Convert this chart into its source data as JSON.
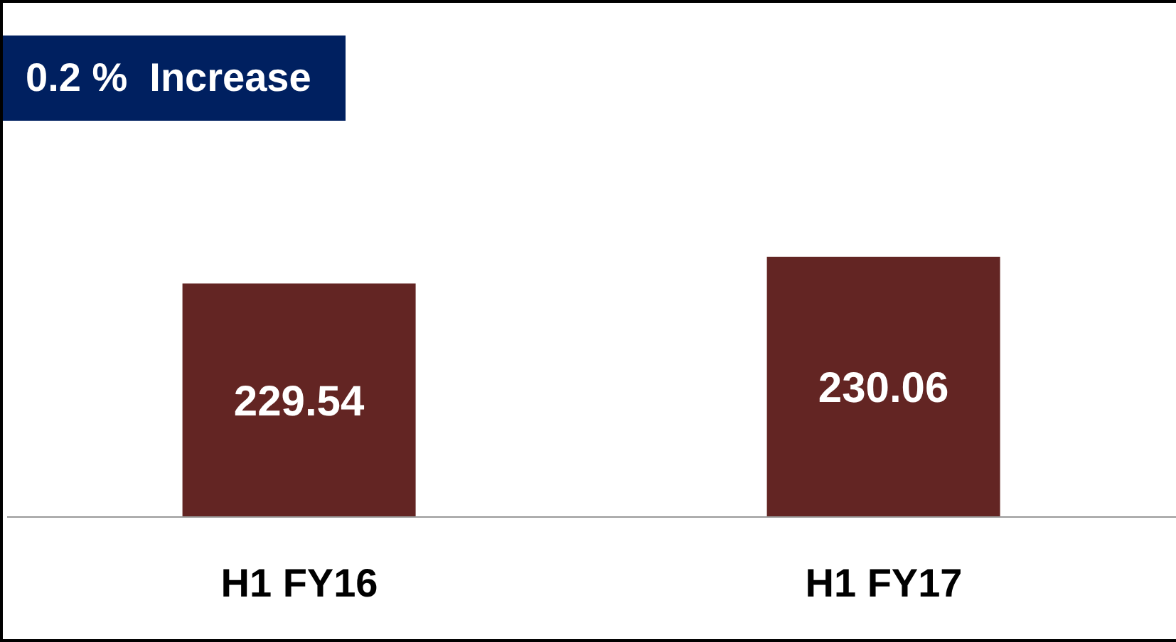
{
  "chart_data": {
    "type": "bar",
    "annotations": [
      "0.2 %  Increase"
    ],
    "categories": [
      "H1 FY16",
      "H1 FY17"
    ],
    "values": [
      229.54,
      230.06
    ],
    "color": "#632523",
    "ylim": [
      225,
      235
    ],
    "data_labels": true
  }
}
